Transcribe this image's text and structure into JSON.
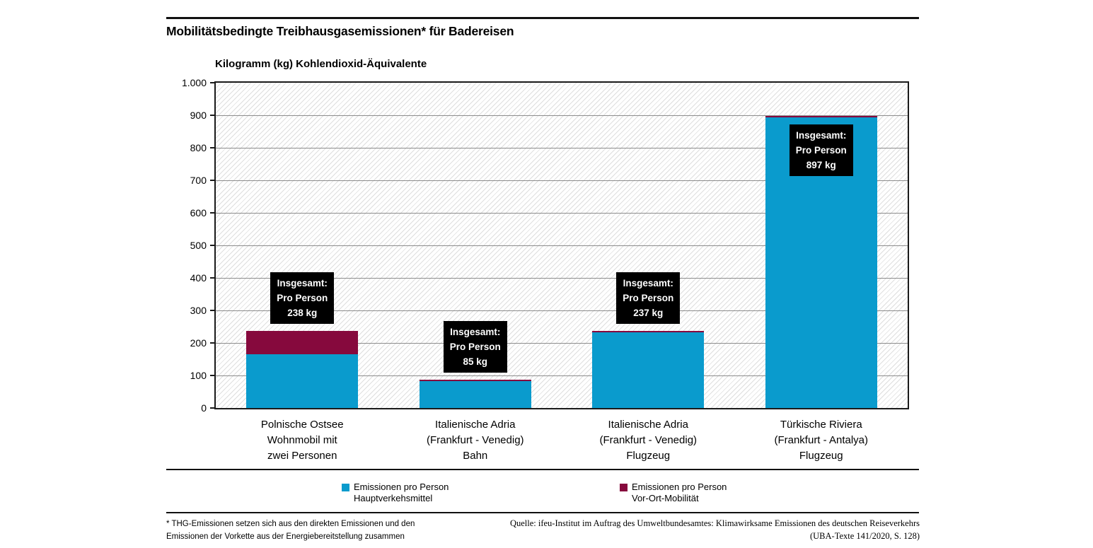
{
  "chart_data": {
    "type": "bar",
    "stacked": true,
    "title": "Mobilitätsbedingte Treibhausgasemissionen* für Badereisen",
    "ylabel": "Kilogramm (kg) Kohlendioxid-Äquivalente",
    "ylim": [
      0,
      1000
    ],
    "ytick_step": 100,
    "ytick_labels": [
      "0",
      "100",
      "200",
      "300",
      "400",
      "500",
      "600",
      "700",
      "800",
      "900",
      "1.000"
    ],
    "grid": true,
    "plot_background": "diagonal-hatch",
    "legend_position": "bottom",
    "categories": [
      [
        "Polnische Ostsee",
        "Wohnmobil mit",
        "zwei Personen"
      ],
      [
        "Italienische Adria",
        "(Frankfurt - Venedig)",
        "Bahn"
      ],
      [
        "Italienische Adria",
        "(Frankfurt - Venedig)",
        "Flugzeug"
      ],
      [
        "Türkische Riviera",
        "(Frankfurt - Antalya)",
        "Flugzeug"
      ]
    ],
    "series": [
      {
        "name": "Emissionen pro Person Hauptverkehsmittel",
        "color": "#0a9bcd",
        "values": [
          165,
          82,
          233,
          893
        ]
      },
      {
        "name": "Emissionen pro Person Vor-Ort-Mobilität",
        "color": "#86093d",
        "values": [
          73,
          3,
          4,
          4
        ]
      }
    ],
    "totals": [
      238,
      85,
      237,
      897
    ],
    "bar_label_lines": [
      [
        "Insgesamt:",
        "Pro Person",
        "238 kg"
      ],
      [
        "Insgesamt:",
        "Pro Person",
        "85 kg"
      ],
      [
        "Insgesamt:",
        "Pro Person",
        "237 kg"
      ],
      [
        "Insgesamt:",
        "Pro Person",
        "897 kg"
      ]
    ]
  },
  "legend": {
    "items": [
      {
        "lines": [
          "Emissionen pro Person",
          "Hauptverkehsmittel"
        ],
        "color": "#0a9bcd"
      },
      {
        "lines": [
          "Emissionen pro Person",
          "Vor-Ort-Mobilität"
        ],
        "color": "#86093d"
      }
    ]
  },
  "footnote": {
    "lines": [
      "* THG-Emissionen setzen sich aus den direkten Emissionen und den",
      "Emissionen der Vorkette aus der Energiebereitstellung zusammen"
    ]
  },
  "source": {
    "lines": [
      "Quelle: ifeu-Institut im Auftrag des Umweltbundesamtes: Klimawirksame Emissionen des deutschen Reiseverkehrs",
      "(UBA-Texte 141/2020, S. 128)"
    ]
  },
  "colors": {
    "main_transport": "#0a9bcd",
    "local_mobility": "#86093d",
    "label_box_bg": "#000000",
    "label_box_text": "#ffffff"
  }
}
